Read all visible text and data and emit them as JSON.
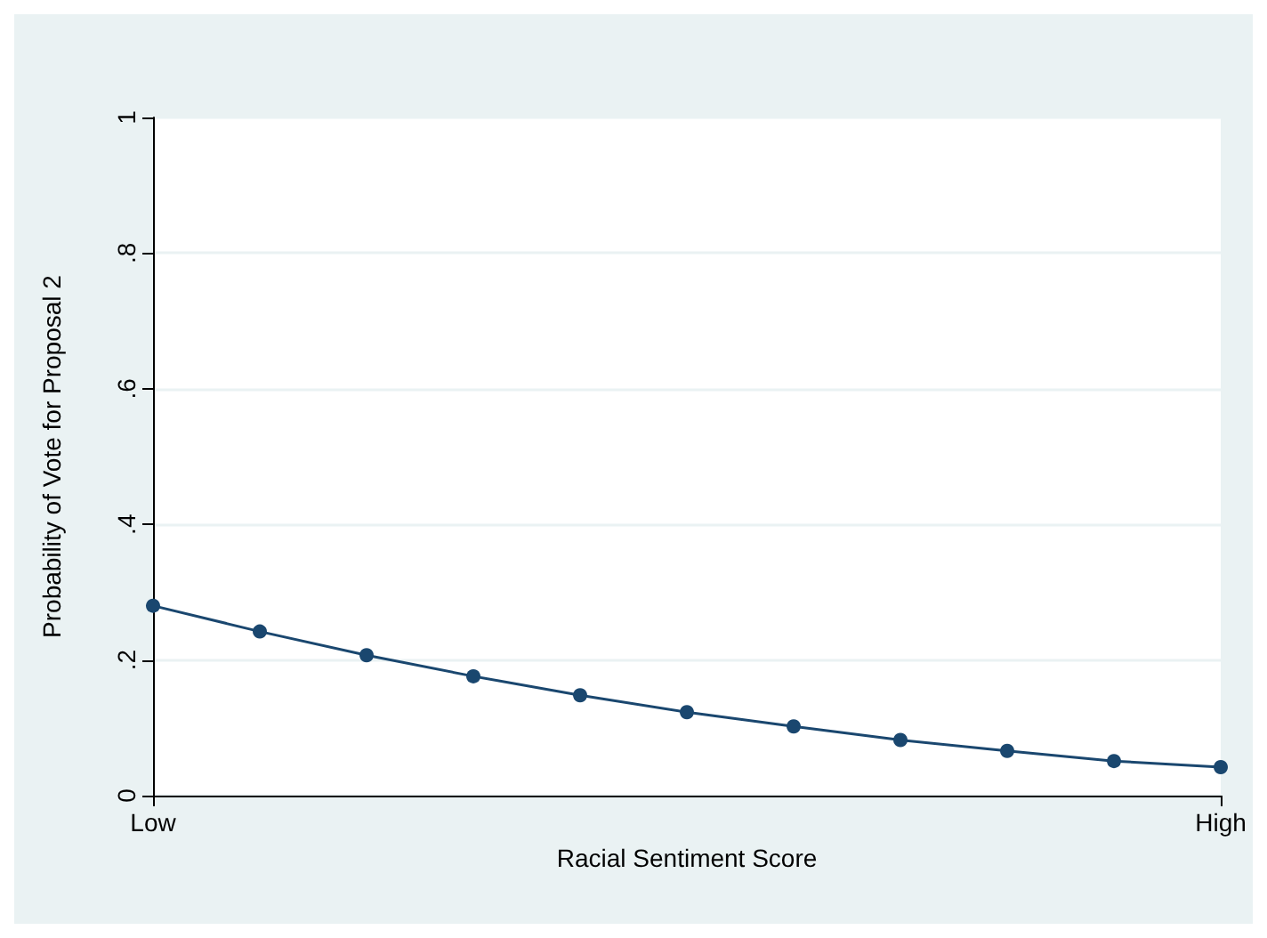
{
  "chart_data": {
    "type": "line",
    "xlabel": "Racial Sentiment Score",
    "ylabel": "Probability of Vote for Proposal 2",
    "categories": [
      "Low",
      null,
      null,
      null,
      null,
      null,
      null,
      null,
      null,
      null,
      "High"
    ],
    "series": [
      {
        "color": "#1a476f",
        "values": [
          0.28,
          0.242,
          0.207,
          0.176,
          0.148,
          0.123,
          0.102,
          0.082,
          0.066,
          0.051,
          0.042
        ]
      }
    ],
    "ylim": [
      0,
      1
    ],
    "yticks": [
      {
        "value": 0,
        "label": "0"
      },
      {
        "value": 0.2,
        "label": ".2"
      },
      {
        "value": 0.4,
        "label": ".4"
      },
      {
        "value": 0.6,
        "label": ".6"
      },
      {
        "value": 0.8,
        "label": ".8"
      },
      {
        "value": 1,
        "label": "1"
      }
    ],
    "grid": "y",
    "marker": "circle",
    "line_style": "solid"
  }
}
